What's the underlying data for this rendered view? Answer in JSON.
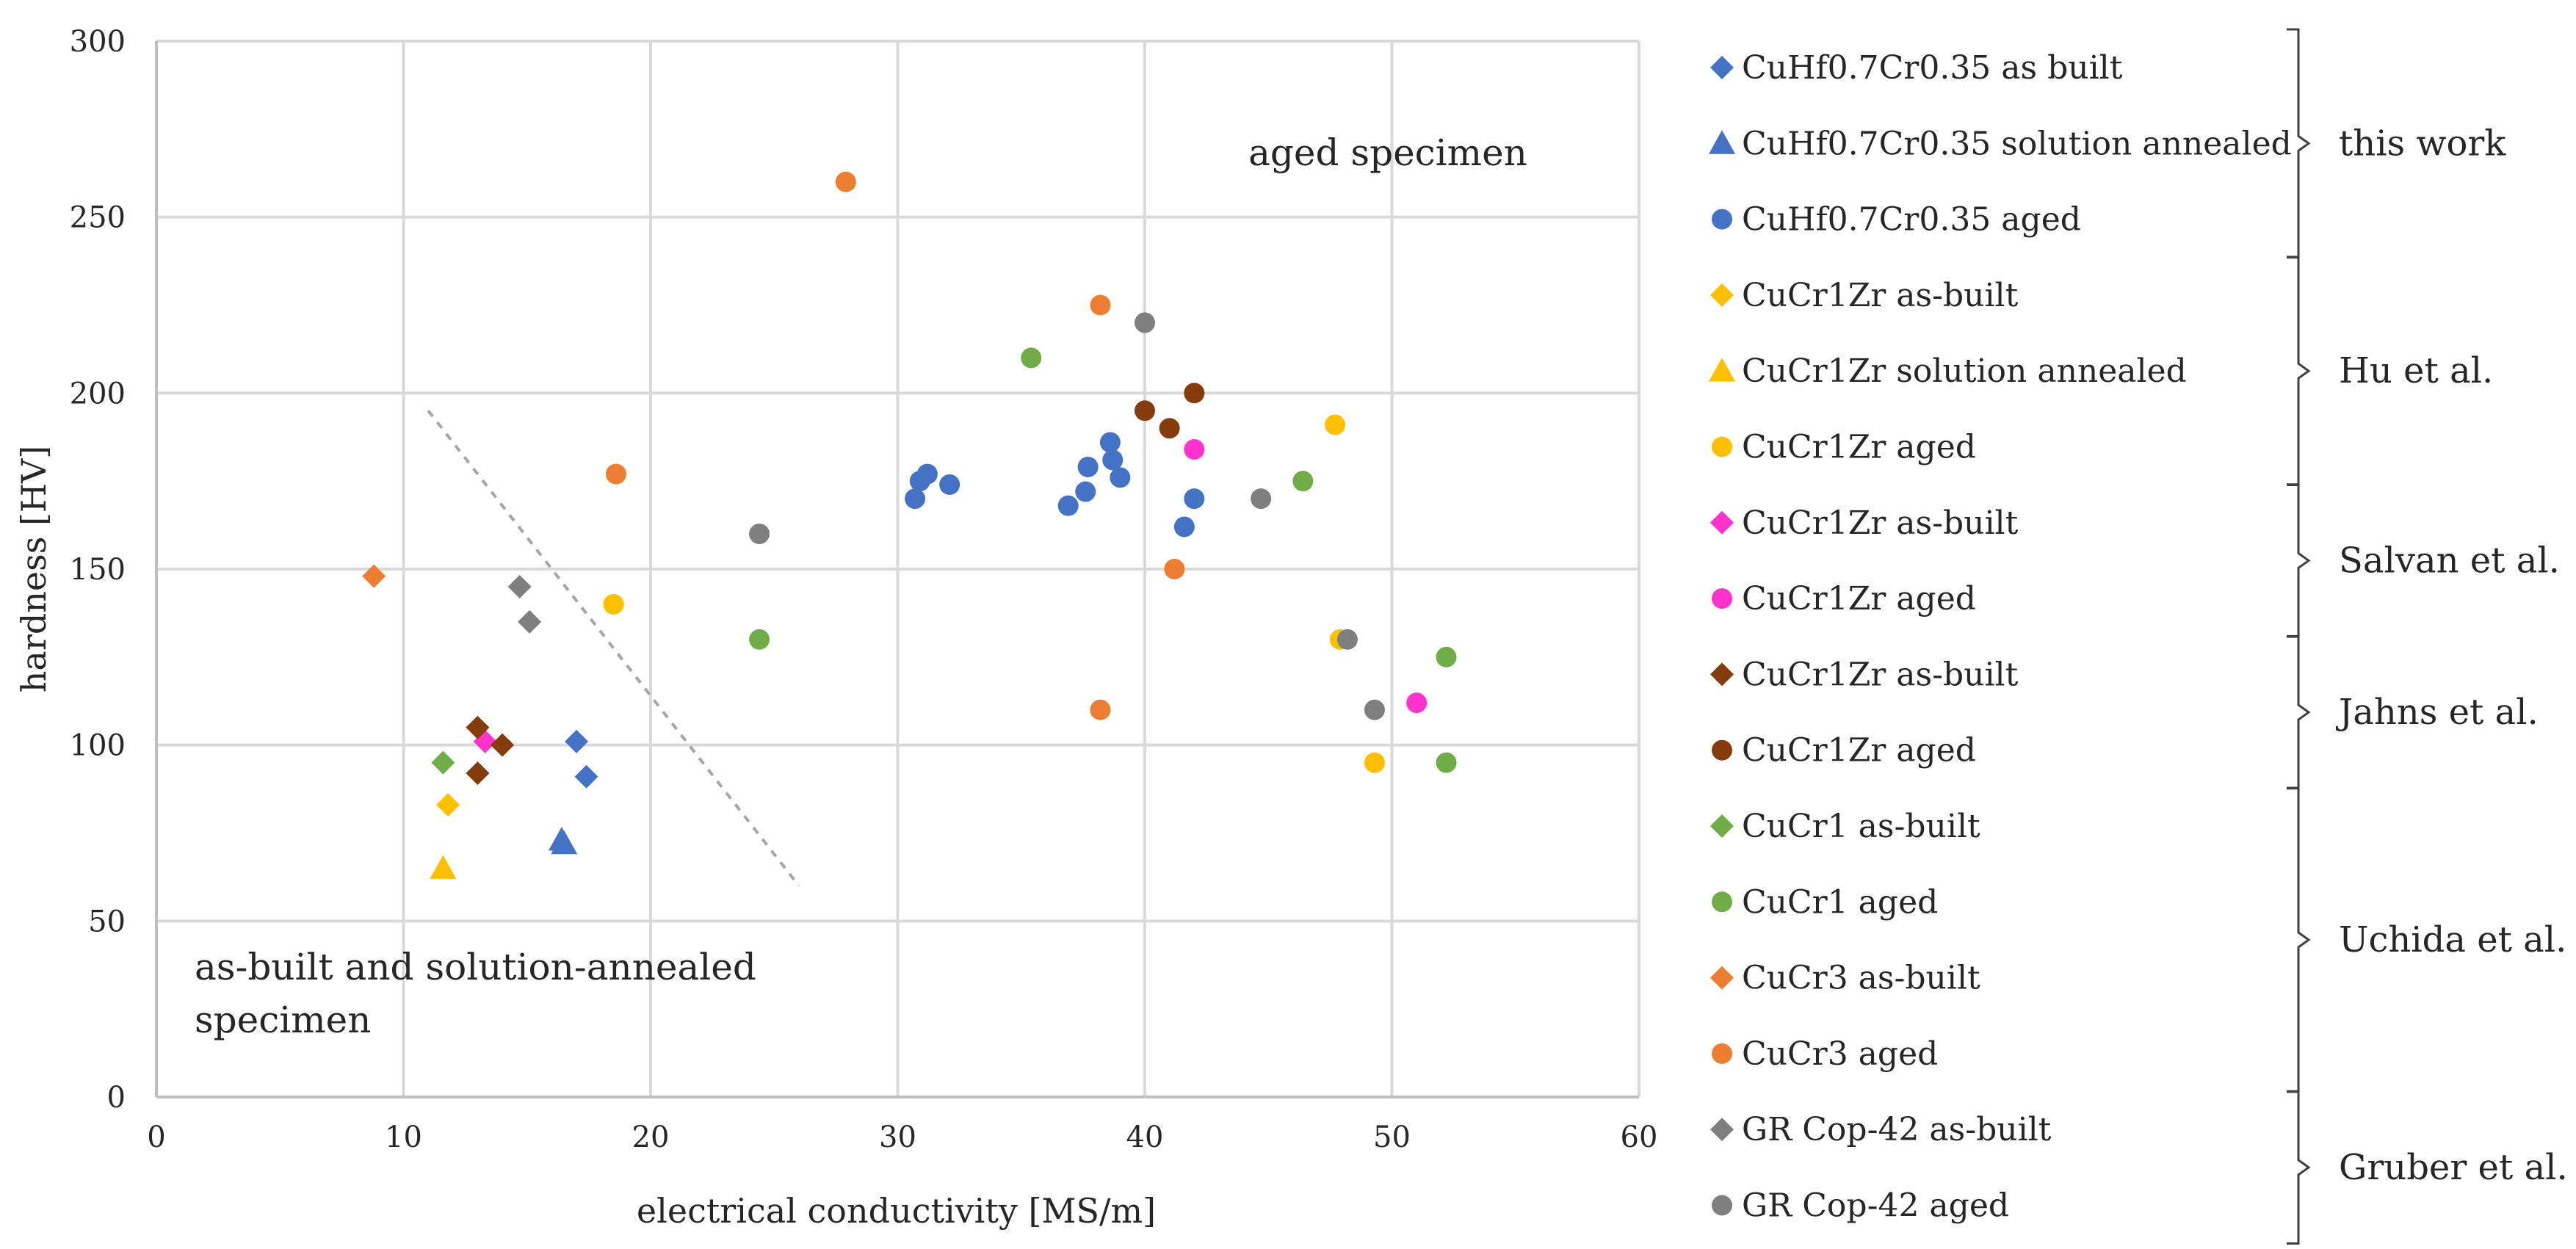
{
  "chart_data": {
    "type": "scatter",
    "xlabel": "electrical conductivity [MS/m]",
    "ylabel": "hardness [HV]",
    "xlim": [
      0,
      60
    ],
    "ylim": [
      0,
      300
    ],
    "x_ticks": [
      0,
      10,
      20,
      30,
      40,
      50,
      60
    ],
    "y_ticks": [
      0,
      50,
      100,
      150,
      200,
      250,
      300
    ],
    "grid": true,
    "legend_position": "right",
    "annotations": {
      "aged": "aged specimen",
      "as_built_line1": "as-built and solution-annealed",
      "as_built_line2": "specimen"
    },
    "divider_line": {
      "x": [
        11,
        26
      ],
      "y": [
        195,
        60
      ]
    },
    "colors": {
      "blue": "#4472C4",
      "yellow": "#FFC000",
      "magenta": "#FF33CC",
      "brown": "#843C0C",
      "green": "#70AD47",
      "orange": "#ED7D31",
      "gray": "#7F7F7F"
    },
    "series": [
      {
        "name": "CuHf0.7Cr0.35 as built",
        "marker": "diamond",
        "color": "#4472C4",
        "x": [
          17.0,
          17.4
        ],
        "y": [
          101,
          91
        ]
      },
      {
        "name": "CuHf0.7Cr0.35 solution annealed",
        "marker": "triangle",
        "color": "#4472C4",
        "x": [
          16.4,
          16.5
        ],
        "y": [
          73,
          72
        ]
      },
      {
        "name": "CuHf0.7Cr0.35 aged",
        "marker": "circle",
        "color": "#4472C4",
        "x": [
          30.7,
          30.9,
          31.2,
          32.1,
          36.9,
          37.6,
          37.7,
          38.6,
          38.7,
          39.0,
          41.6,
          42.0
        ],
        "y": [
          170,
          175,
          177,
          174,
          168,
          172,
          179,
          186,
          181,
          176,
          162,
          170
        ]
      },
      {
        "name": "CuCr1Zr as-built",
        "marker": "diamond",
        "color": "#FFC000",
        "x": [
          11.8
        ],
        "y": [
          83
        ]
      },
      {
        "name": "CuCr1Zr solution annealed",
        "marker": "triangle",
        "color": "#FFC000",
        "x": [
          11.6
        ],
        "y": [
          65
        ]
      },
      {
        "name": "CuCr1Zr aged",
        "marker": "circle",
        "color": "#FFC000",
        "x": [
          18.5,
          47.7,
          47.9,
          49.3
        ],
        "y": [
          140,
          191,
          130,
          95
        ]
      },
      {
        "name": "CuCr1Zr as-built",
        "marker": "diamond",
        "color": "#FF33CC",
        "x": [
          13.3
        ],
        "y": [
          101
        ]
      },
      {
        "name": "CuCr1Zr aged",
        "marker": "circle",
        "color": "#FF33CC",
        "x": [
          42.0,
          51.0
        ],
        "y": [
          184,
          112
        ]
      },
      {
        "name": "CuCr1Zr as-built",
        "marker": "diamond",
        "color": "#843C0C",
        "x": [
          13.0,
          13.0,
          14.0
        ],
        "y": [
          105,
          92,
          100
        ]
      },
      {
        "name": "CuCr1Zr aged",
        "marker": "circle",
        "color": "#843C0C",
        "x": [
          40.0,
          41.0,
          42.0
        ],
        "y": [
          195,
          190,
          200
        ]
      },
      {
        "name": "CuCr1 as-built",
        "marker": "diamond",
        "color": "#70AD47",
        "x": [
          11.6
        ],
        "y": [
          95
        ]
      },
      {
        "name": "CuCr1 aged",
        "marker": "circle",
        "color": "#70AD47",
        "x": [
          24.4,
          35.4,
          46.4,
          52.2,
          52.2
        ],
        "y": [
          130,
          210,
          175,
          125,
          95
        ]
      },
      {
        "name": "CuCr3 as-built",
        "marker": "diamond",
        "color": "#ED7D31",
        "x": [
          8.8
        ],
        "y": [
          148
        ]
      },
      {
        "name": "CuCr3 aged",
        "marker": "circle",
        "color": "#ED7D31",
        "x": [
          18.6,
          27.9,
          38.2,
          38.2,
          41.2
        ],
        "y": [
          177,
          260,
          225,
          110,
          150
        ]
      },
      {
        "name": "GR Cop-42 as-built",
        "marker": "diamond",
        "color": "#7F7F7F",
        "x": [
          14.7,
          15.1
        ],
        "y": [
          145,
          135
        ]
      },
      {
        "name": "GR Cop-42 aged",
        "marker": "circle",
        "color": "#7F7F7F",
        "x": [
          24.4,
          40.0,
          44.7,
          48.2,
          49.3
        ],
        "y": [
          160,
          220,
          170,
          130,
          110
        ]
      }
    ],
    "legend_groups": [
      {
        "label": "this work",
        "series_indices": [
          0,
          1,
          2
        ]
      },
      {
        "label": "Hu et al.",
        "series_indices": [
          3,
          4,
          5
        ]
      },
      {
        "label": "Salvan et al.",
        "series_indices": [
          6,
          7
        ]
      },
      {
        "label": "Jahns et al.",
        "series_indices": [
          8,
          9
        ]
      },
      {
        "label": "Uchida et al.",
        "series_indices": [
          10,
          11,
          12,
          13
        ]
      },
      {
        "label": "Gruber et al.",
        "series_indices": [
          14,
          15
        ]
      }
    ]
  }
}
